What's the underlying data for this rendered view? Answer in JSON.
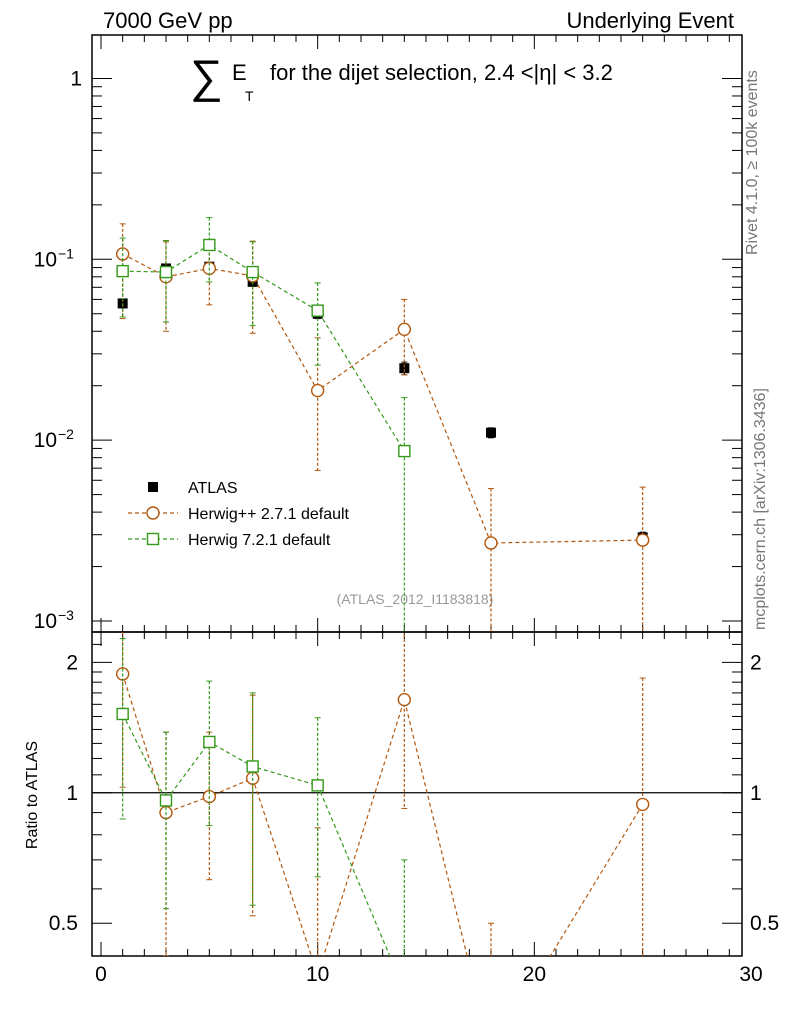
{
  "header": {
    "left": "7000 GeV pp",
    "right": "Underlying Event"
  },
  "side_labels": {
    "rivet": "Rivet 4.1.0, ≥ 100k events",
    "mcplots": "mcplots.cern.ch [arXiv:1306.3436]"
  },
  "chart_data": {
    "type": "scatter",
    "title": {
      "sum_symbol": "∑",
      "e_letter": "E",
      "e_subscript": "T",
      "text": "for the dijet selection, 2.4 <|η| < 3.2"
    },
    "watermark": "(ATLAS_2012_I1183818)",
    "xlim": [
      0,
      30
    ],
    "x_ticks": [
      0,
      10,
      20,
      30
    ],
    "main": {
      "yscale": "log",
      "ylim": [
        0.001,
        2
      ],
      "y_ticks": [
        {
          "value": 1,
          "label": "1"
        },
        {
          "value": 0.1,
          "base": "10",
          "exp": "−1"
        },
        {
          "value": 0.01,
          "base": "10",
          "exp": "−2"
        },
        {
          "value": 0.001,
          "base": "10",
          "exp": "−3"
        }
      ]
    },
    "ratio": {
      "ylabel": "Ratio to ATLAS",
      "ylim": [
        0.42,
        2.35
      ],
      "y_ticks": [
        {
          "value": 2,
          "label": "2"
        },
        {
          "value": 1,
          "label": "1"
        },
        {
          "value": 0.5,
          "label": "0.5"
        }
      ]
    },
    "legend_position": "middle-left",
    "series": [
      {
        "name": "ATLAS",
        "color": "#000000",
        "marker": "filled-square",
        "x": [
          1,
          3,
          5,
          7,
          10,
          14,
          18,
          25
        ],
        "y": [
          0.057,
          0.089,
          0.091,
          0.075,
          0.05,
          0.025,
          0.011,
          0.0029
        ],
        "yerr_low": [
          0.003,
          0.004,
          0.004,
          0.004,
          0.003,
          0.002,
          0.0007,
          0.0002
        ],
        "yerr_high": [
          0.003,
          0.004,
          0.004,
          0.004,
          0.003,
          0.002,
          0.0007,
          0.0002
        ]
      },
      {
        "name": "Herwig++ 2.7.1 default",
        "color": "#b3580f",
        "marker": "open-circle",
        "x": [
          1,
          3,
          5,
          7,
          10,
          14,
          18,
          25
        ],
        "y": [
          0.107,
          0.08,
          0.089,
          0.081,
          0.0188,
          0.041,
          0.0027,
          0.0028
        ],
        "yerr_low": [
          0.06,
          0.04,
          0.033,
          0.042,
          0.012,
          0.018,
          0.0025,
          0.0026
        ],
        "yerr_high": [
          0.05,
          0.045,
          0.035,
          0.045,
          0.018,
          0.019,
          0.0027,
          0.0027
        ],
        "ratio": [
          1.88,
          0.9,
          0.98,
          1.08,
          0.38,
          1.64,
          0.25,
          0.94
        ],
        "ratio_err_low": [
          0.85,
          0.48,
          0.35,
          0.56,
          0.3,
          0.72,
          0.2,
          0.55
        ],
        "ratio_err_high": [
          0.95,
          0.48,
          0.4,
          0.6,
          0.45,
          0.75,
          0.25,
          0.9
        ]
      },
      {
        "name": "Herwig 7.2.1 default",
        "color": "#33991a",
        "marker": "open-square",
        "x": [
          1,
          3,
          5,
          7,
          10,
          14
        ],
        "y": [
          0.086,
          0.085,
          0.12,
          0.085,
          0.052,
          0.0087
        ],
        "yerr_low": [
          0.038,
          0.04,
          0.045,
          0.042,
          0.026,
          0.0087
        ],
        "yerr_high": [
          0.045,
          0.042,
          0.05,
          0.04,
          0.022,
          0.0085
        ],
        "ratio": [
          1.52,
          0.96,
          1.31,
          1.15,
          1.04,
          0.35
        ],
        "ratio_err_low": [
          0.65,
          0.42,
          0.47,
          0.6,
          0.4,
          0.3
        ],
        "ratio_err_high": [
          0.75,
          0.42,
          0.5,
          0.55,
          0.45,
          0.35
        ]
      }
    ]
  }
}
